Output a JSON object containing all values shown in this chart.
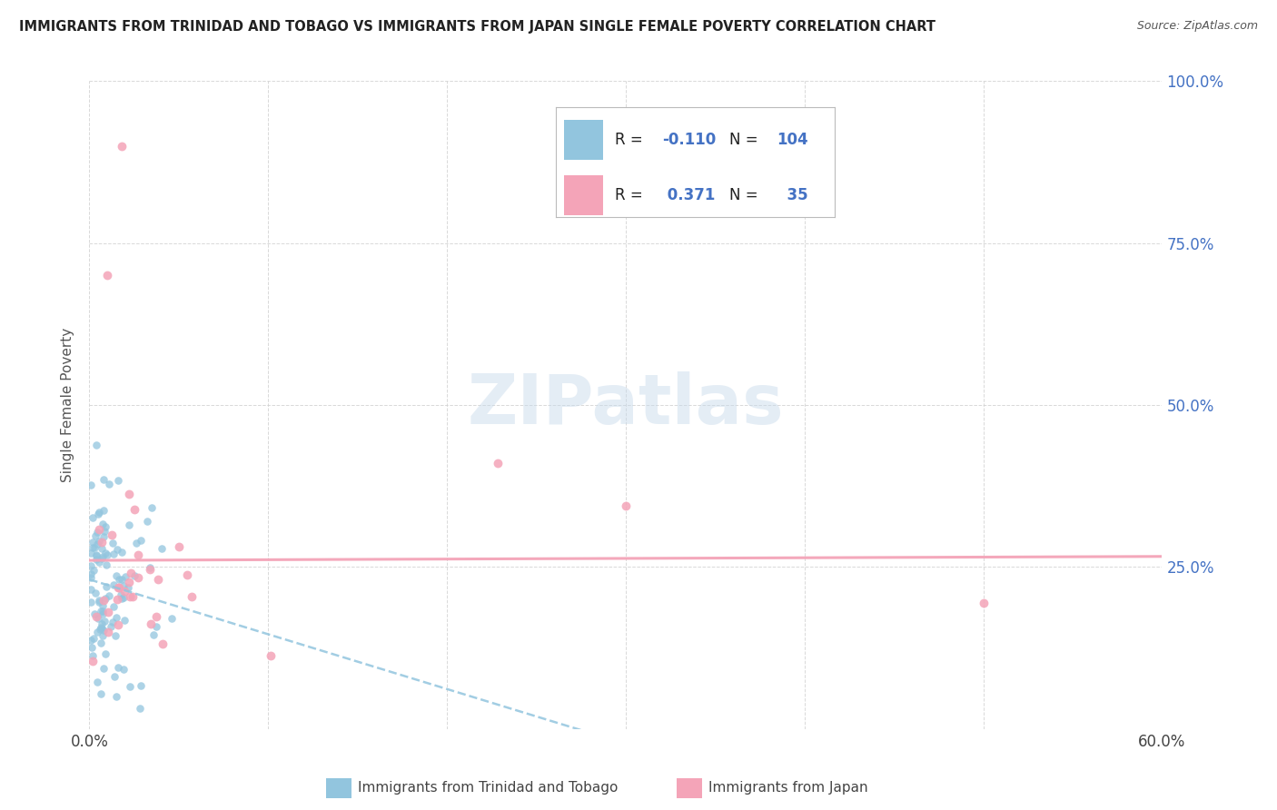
{
  "title": "IMMIGRANTS FROM TRINIDAD AND TOBAGO VS IMMIGRANTS FROM JAPAN SINGLE FEMALE POVERTY CORRELATION CHART",
  "source": "Source: ZipAtlas.com",
  "xlabel_blue": "Immigrants from Trinidad and Tobago",
  "xlabel_pink": "Immigrants from Japan",
  "ylabel": "Single Female Poverty",
  "watermark": "ZIPatlas",
  "blue_R": -0.11,
  "blue_N": 104,
  "pink_R": 0.371,
  "pink_N": 35,
  "xmin": 0.0,
  "xmax": 0.6,
  "ymin": 0.0,
  "ymax": 1.0,
  "blue_color": "#92c5de",
  "pink_color": "#f4a4b8",
  "background_color": "#ffffff",
  "grid_color": "#d0d0d0",
  "title_color": "#222222",
  "right_axis_color": "#4472c4"
}
